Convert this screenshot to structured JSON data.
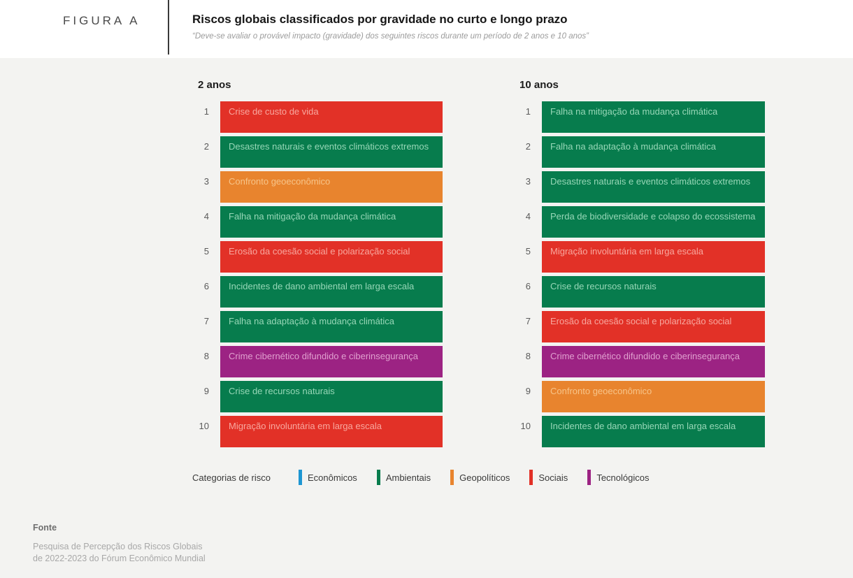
{
  "figure_label": "FIGURA A",
  "title": "Riscos globais classificados por gravidade no curto e longo prazo",
  "subtitle": "“Deve-se avaliar o provável impacto (gravidade) dos seguintes riscos durante um período de 2 anos e 10 anos”",
  "colors": {
    "economicos": "#1E96D2",
    "ambientais": "#077C4D",
    "geopoliticos": "#E8842E",
    "sociais": "#E23127",
    "tecnologicos": "#9C2383",
    "background": "#f3f3f1"
  },
  "chart_data": {
    "type": "table",
    "title": "Riscos globais classificados por gravidade no curto e longo prazo",
    "subtitle": "“Deve-se avaliar o provável impacto (gravidade) dos seguintes riscos durante um período de 2 anos e 10 anos”",
    "legend_position": "bottom",
    "columns": [
      {
        "label": "2 anos",
        "ranks": [
          {
            "rank": 1,
            "risk": "Crise de custo de vida",
            "category": "Sociais",
            "category_key": "sociais"
          },
          {
            "rank": 2,
            "risk": "Desastres naturais e eventos climáticos extremos",
            "category": "Ambientais",
            "category_key": "ambientais"
          },
          {
            "rank": 3,
            "risk": "Confronto geoeconômico",
            "category": "Geopolíticos",
            "category_key": "geopoliticos"
          },
          {
            "rank": 4,
            "risk": "Falha na mitigação da mudança climática",
            "category": "Ambientais",
            "category_key": "ambientais"
          },
          {
            "rank": 5,
            "risk": "Erosão da coesão social e polarização social",
            "category": "Sociais",
            "category_key": "sociais"
          },
          {
            "rank": 6,
            "risk": "Incidentes de dano ambiental em larga escala",
            "category": "Ambientais",
            "category_key": "ambientais"
          },
          {
            "rank": 7,
            "risk": "Falha na adaptação à mudança climática",
            "category": "Ambientais",
            "category_key": "ambientais"
          },
          {
            "rank": 8,
            "risk": "Crime cibernético difundido e ciberinsegurança",
            "category": "Tecnológicos",
            "category_key": "tecnologicos"
          },
          {
            "rank": 9,
            "risk": "Crise de recursos naturais",
            "category": "Ambientais",
            "category_key": "ambientais"
          },
          {
            "rank": 10,
            "risk": "Migração involuntária em larga escala",
            "category": "Sociais",
            "category_key": "sociais"
          }
        ]
      },
      {
        "label": "10 anos",
        "ranks": [
          {
            "rank": 1,
            "risk": "Falha na mitigação da mudança climática",
            "category": "Ambientais",
            "category_key": "ambientais"
          },
          {
            "rank": 2,
            "risk": "Falha na adaptação à mudança climática",
            "category": "Ambientais",
            "category_key": "ambientais"
          },
          {
            "rank": 3,
            "risk": "Desastres naturais e eventos climáticos extremos",
            "category": "Ambientais",
            "category_key": "ambientais"
          },
          {
            "rank": 4,
            "risk": "Perda de biodiversidade e colapso do ecossistema",
            "category": "Ambientais",
            "category_key": "ambientais"
          },
          {
            "rank": 5,
            "risk": "Migração involuntária em larga escala",
            "category": "Sociais",
            "category_key": "sociais"
          },
          {
            "rank": 6,
            "risk": "Crise de recursos naturais",
            "category": "Ambientais",
            "category_key": "ambientais"
          },
          {
            "rank": 7,
            "risk": "Erosão da coesão social e polarização social",
            "category": "Sociais",
            "category_key": "sociais"
          },
          {
            "rank": 8,
            "risk": "Crime cibernético difundido e ciberinsegurança",
            "category": "Tecnológicos",
            "category_key": "tecnologicos"
          },
          {
            "rank": 9,
            "risk": "Confronto geoeconômico",
            "category": "Geopolíticos",
            "category_key": "geopoliticos"
          },
          {
            "rank": 10,
            "risk": "Incidentes de dano ambiental em larga escala",
            "category": "Ambientais",
            "category_key": "ambientais"
          }
        ]
      }
    ],
    "legend": {
      "label": "Categorias de risco",
      "categories": [
        {
          "name": "Econômicos",
          "key": "economicos",
          "color": "#1E96D2"
        },
        {
          "name": "Ambientais",
          "key": "ambientais",
          "color": "#077C4D"
        },
        {
          "name": "Geopolíticos",
          "key": "geopoliticos",
          "color": "#E8842E"
        },
        {
          "name": "Sociais",
          "key": "sociais",
          "color": "#E23127"
        },
        {
          "name": "Tecnológicos",
          "key": "tecnologicos",
          "color": "#9C2383"
        }
      ]
    }
  },
  "footer": {
    "heading": "Fonte",
    "source_line1": "Pesquisa de Percepção dos Riscos Globais",
    "source_line2": "de 2022-2023 do Fórum Econômico Mundial"
  }
}
